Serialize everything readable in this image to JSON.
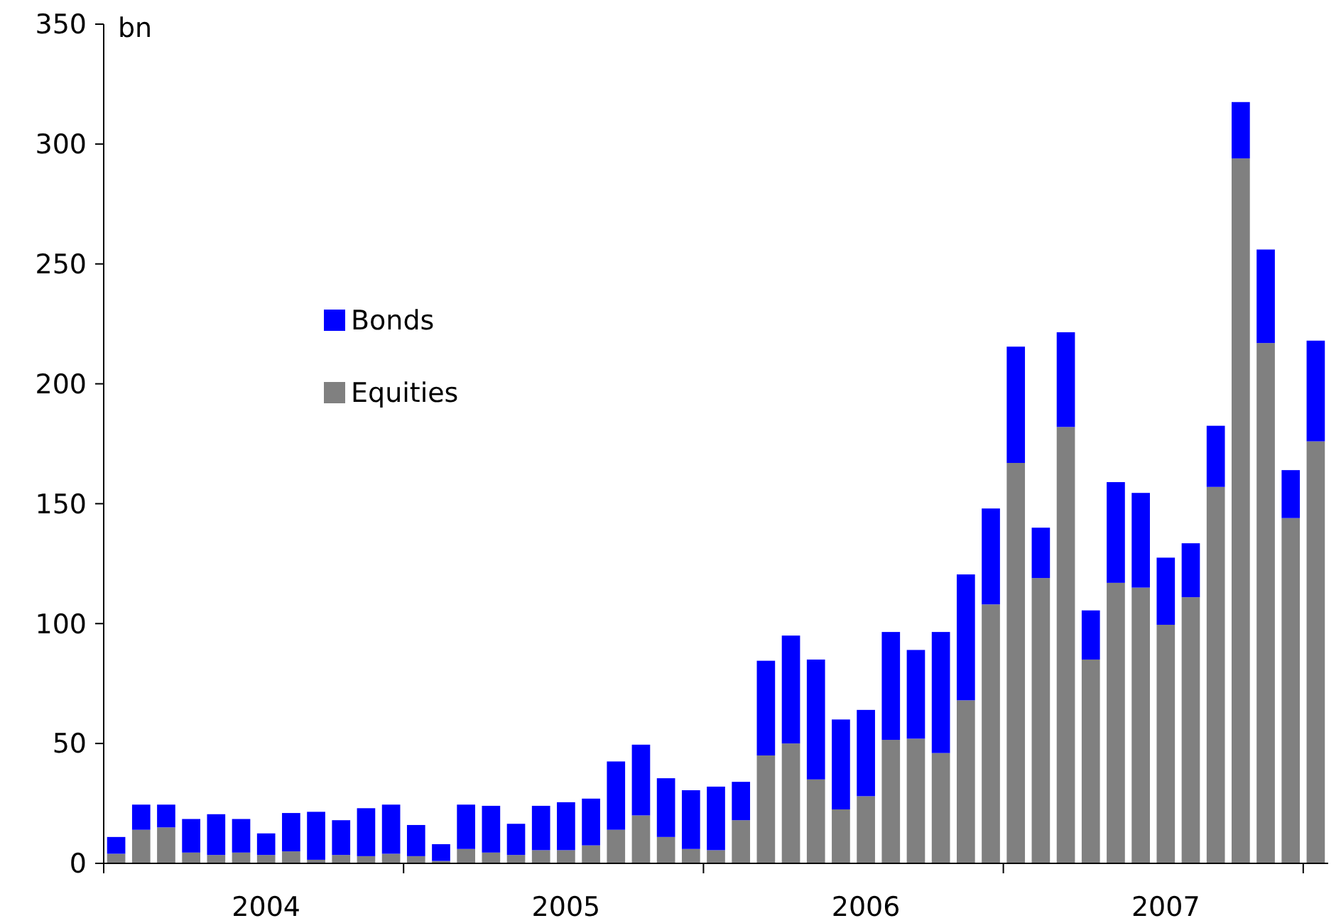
{
  "chart_data": {
    "type": "bar",
    "stacked": true,
    "ylabel": "bn",
    "legend": "top left",
    "grid": false,
    "categories": [
      null,
      null,
      null,
      null,
      null,
      null,
      "2004",
      null,
      null,
      null,
      null,
      null,
      null,
      null,
      null,
      null,
      null,
      null,
      "2005",
      null,
      null,
      null,
      null,
      null,
      null,
      null,
      null,
      null,
      null,
      null,
      "2006",
      null,
      null,
      null,
      null,
      null,
      null,
      null,
      null,
      null,
      null,
      null,
      "2007",
      null,
      null,
      null,
      null,
      null,
      null
    ],
    "ylim": [
      0,
      350
    ],
    "yticks": [
      0,
      50,
      100,
      150,
      200,
      250,
      300,
      350
    ],
    "series": [
      {
        "name": "Equities",
        "color": "#808080",
        "values": [
          4,
          14,
          15,
          4.5,
          3.5,
          4.5,
          3.5,
          5,
          1.5,
          3.5,
          3,
          4,
          3,
          1,
          6,
          4.5,
          3.5,
          5.5,
          5.5,
          7.5,
          14,
          20,
          11,
          6,
          5.5,
          18,
          45,
          50,
          35,
          22.5,
          28,
          51.5,
          52,
          46,
          68,
          108,
          167,
          119,
          182,
          85,
          117,
          115,
          99.5,
          111,
          157,
          294,
          217,
          144,
          176
        ]
      },
      {
        "name": "Bonds",
        "color": "#0000ff",
        "values": [
          7,
          10.5,
          9.5,
          14,
          17,
          14,
          9,
          16,
          20,
          14.5,
          20,
          20.5,
          13,
          7,
          18.5,
          19.5,
          13,
          18.5,
          20,
          19.5,
          28.5,
          29.5,
          24.5,
          24.5,
          26.5,
          16,
          39.5,
          45,
          50,
          37.5,
          36,
          45,
          37,
          50.5,
          52.5,
          40,
          48.5,
          21,
          39.5,
          20.5,
          42,
          39.5,
          28,
          22.5,
          25.5,
          23.5,
          39,
          20,
          42
        ]
      }
    ]
  }
}
